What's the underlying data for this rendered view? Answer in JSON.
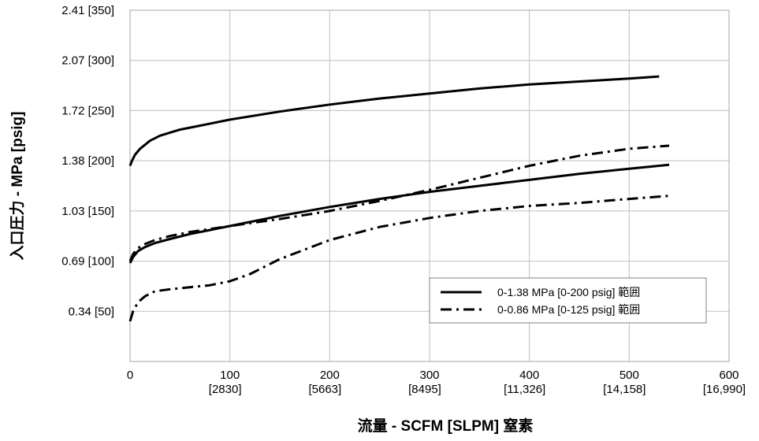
{
  "chart_data": {
    "type": "line",
    "xlabel": "流量 - SCFM [SLPM] 窒素",
    "ylabel": "入口圧力 - MPa [psig]",
    "xlim": [
      0,
      600
    ],
    "ylim": [
      0,
      350
    ],
    "x_ticks": [
      {
        "value": 0,
        "label": "0",
        "sub": ""
      },
      {
        "value": 100,
        "label": "100",
        "sub": "[2830]"
      },
      {
        "value": 200,
        "label": "200",
        "sub": "[5663]"
      },
      {
        "value": 300,
        "label": "300",
        "sub": "[8495]"
      },
      {
        "value": 400,
        "label": "400",
        "sub": "[11,326]"
      },
      {
        "value": 500,
        "label": "500",
        "sub": "[14,158]"
      },
      {
        "value": 600,
        "label": "600",
        "sub": "[16,990]"
      }
    ],
    "y_ticks": [
      {
        "value": 50,
        "label": "0.34 [50]"
      },
      {
        "value": 100,
        "label": "0.69 [100]"
      },
      {
        "value": 150,
        "label": "1.03 [150]"
      },
      {
        "value": 200,
        "label": "1.38 [200]"
      },
      {
        "value": 250,
        "label": "1.72 [250]"
      },
      {
        "value": 300,
        "label": "2.07 [300]"
      },
      {
        "value": 350,
        "label": "2.41 [350]"
      }
    ],
    "grid": true,
    "legend_position": "bottom-right",
    "series": [
      {
        "name": "0-1.38 MPa [0-200 psig] 範囲",
        "style": "solid",
        "color": "#000000",
        "x": [
          0,
          2,
          5,
          10,
          20,
          30,
          50,
          75,
          100,
          150,
          200,
          250,
          300,
          350,
          400,
          450,
          500,
          530
        ],
        "y": [
          195,
          200,
          206,
          212,
          220,
          225,
          231,
          236,
          241,
          249,
          256,
          262,
          267,
          272,
          276,
          279,
          282,
          284
        ]
      },
      {
        "name": "0-1.38 MPa [0-200 psig] 範囲",
        "style": "solid",
        "color": "#000000",
        "x": [
          0,
          3,
          8,
          15,
          25,
          40,
          60,
          80,
          100,
          150,
          200,
          250,
          300,
          350,
          400,
          450,
          500,
          540
        ],
        "y": [
          98,
          104,
          110,
          114,
          118,
          122,
          127,
          131,
          135,
          145,
          154,
          162,
          169,
          175,
          181,
          187,
          192,
          196
        ]
      },
      {
        "name": "0-0.86 MPa [0-125 psig] 範囲",
        "style": "dashdot",
        "color": "#000000",
        "x": [
          0,
          3,
          8,
          15,
          25,
          40,
          60,
          80,
          100,
          150,
          200,
          250,
          300,
          350,
          400,
          450,
          500,
          540
        ],
        "y": [
          100,
          107,
          113,
          117,
          121,
          125,
          129,
          132,
          135,
          142,
          150,
          160,
          171,
          183,
          195,
          205,
          212,
          215
        ]
      },
      {
        "name": "0-0.86 MPa [0-125 psig] 範囲",
        "style": "dashdot",
        "color": "#000000",
        "x": [
          0,
          3,
          8,
          15,
          25,
          40,
          60,
          80,
          100,
          120,
          150,
          200,
          250,
          300,
          350,
          400,
          450,
          500,
          540
        ],
        "y": [
          40,
          50,
          59,
          65,
          70,
          72,
          74,
          76,
          80,
          87,
          102,
          121,
          134,
          143,
          150,
          155,
          158,
          162,
          165
        ]
      }
    ],
    "legend": [
      {
        "label": "0-1.38 MPa [0-200 psig] 範囲",
        "style": "solid"
      },
      {
        "label": "0-0.86 MPa [0-125 psig] 範囲",
        "style": "dashdot"
      }
    ]
  }
}
